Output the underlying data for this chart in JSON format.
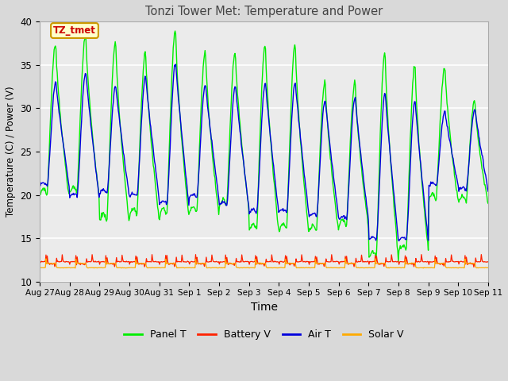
{
  "title": "Tonzi Tower Met: Temperature and Power",
  "xlabel": "Time",
  "ylabel": "Temperature (C) / Power (V)",
  "ylim": [
    10,
    40
  ],
  "n_days": 15,
  "xtick_labels": [
    "Aug 27",
    "Aug 28",
    "Aug 29",
    "Aug 30",
    "Aug 31",
    "Sep 1",
    "Sep 2",
    "Sep 3",
    "Sep 4",
    "Sep 5",
    "Sep 6",
    "Sep 7",
    "Sep 8",
    "Sep 9",
    "Sep 10",
    "Sep 11"
  ],
  "legend_labels": [
    "Panel T",
    "Battery V",
    "Air T",
    "Solar V"
  ],
  "line_colors": [
    "#00ee00",
    "#ff2200",
    "#0000dd",
    "#ffaa00"
  ],
  "annotation_text": "TZ_tmet",
  "annotation_fg": "#cc0000",
  "annotation_bg": "#ffffcc",
  "annotation_border": "#cc9900",
  "fig_bg": "#d9d9d9",
  "plot_bg": "#ebebeb",
  "grid_color": "#ffffff",
  "yticks": [
    10,
    15,
    20,
    25,
    30,
    35,
    40
  ],
  "panel_peaks": [
    37.5,
    38.5,
    37.8,
    36.6,
    39.1,
    36.7,
    36.6,
    37.5,
    37.5,
    33.3,
    33.0,
    36.8,
    35.1,
    34.9,
    31.0
  ],
  "panel_mins": [
    19.8,
    20.0,
    17.0,
    17.5,
    17.6,
    17.8,
    18.5,
    15.9,
    15.9,
    15.8,
    16.3,
    12.8,
    13.6,
    19.2,
    19.0
  ],
  "air_peaks": [
    33.0,
    34.2,
    32.6,
    33.7,
    35.3,
    32.8,
    32.6,
    33.0,
    33.0,
    31.0,
    31.2,
    31.8,
    30.9,
    29.7,
    29.9
  ],
  "air_mins": [
    21.0,
    19.8,
    20.2,
    19.8,
    18.9,
    19.7,
    18.8,
    18.0,
    18.0,
    17.5,
    17.2,
    14.8,
    14.8,
    21.0,
    20.5
  ],
  "batt_base": 12.3,
  "batt_spike": 13.0,
  "solar_base": 11.8,
  "solar_spike": 12.6,
  "pts_per_day": 48
}
